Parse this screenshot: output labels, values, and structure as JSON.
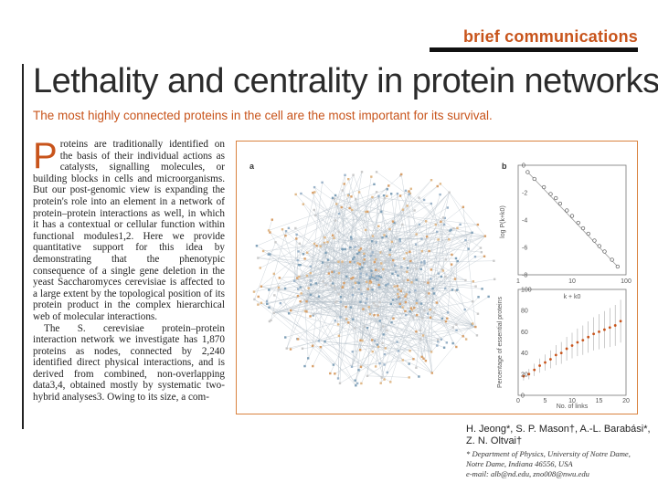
{
  "header": {
    "brand": "brief communications"
  },
  "article": {
    "title": "Lethality and centrality in protein networks",
    "subtitle": "The most highly connected proteins in the cell are the most important for its survival.",
    "dropcap": "P",
    "para1": "roteins are traditionally identified on the basis of their individual actions as catalysts, signalling molecules, or building blocks in cells and microorganisms. But our post-genomic view is expanding the protein's role into an element in a network of protein–protein interactions as well, in which it has a contextual or cellular function within functional modules1,2. Here we provide quantitative support for this idea by demonstrating that the phenotypic consequence of a single gene deletion in the yeast Saccharomyces cerevisiae is affected to a large extent by the topological position of its protein product in the complex hierarchical web of molecular interactions.",
    "para2": "The S. cerevisiae protein–protein interaction network we investigate has 1,870 proteins as nodes, connected by 2,240 identified direct physical interactions, and is derived from combined, non-overlapping data3,4, obtained mostly by systematic two-hybrid analyses3. Owing to its size, a com-"
  },
  "figure": {
    "panel_a": "a",
    "panel_b": "b",
    "b_ylabel_top": "log P(k+k0)",
    "b_xlabel_top": "k + k0",
    "b_ylabel_bottom": "Percentage of essential proteins",
    "b_xlabel_bottom": "No. of links"
  },
  "chart_data": [
    {
      "type": "scatter",
      "xlabel": "k + k0",
      "ylabel": "log P(k+k0)",
      "x_scale": "log",
      "xlim": [
        1,
        100
      ],
      "ylim": [
        -8,
        0
      ],
      "x_ticks": [
        "1",
        "10",
        "100"
      ],
      "y_ticks": [
        "0",
        "-2",
        "-4",
        "-6",
        "-8"
      ],
      "x": [
        1.5,
        2,
        3,
        4,
        5,
        6,
        8,
        10,
        13,
        16,
        20,
        26,
        32,
        40,
        55,
        70
      ],
      "y": [
        -0.5,
        -1.0,
        -1.6,
        -2.1,
        -2.4,
        -2.8,
        -3.3,
        -3.7,
        -4.2,
        -4.6,
        -5.0,
        -5.5,
        -5.9,
        -6.3,
        -6.9,
        -7.4
      ]
    },
    {
      "type": "line",
      "xlabel": "No. of links",
      "ylabel": "Percentage of essential proteins",
      "xlim": [
        0,
        20
      ],
      "ylim": [
        0,
        100
      ],
      "x_ticks": [
        "0",
        "5",
        "10",
        "15",
        "20"
      ],
      "y_ticks": [
        "0",
        "20",
        "40",
        "60",
        "80",
        "100"
      ],
      "x": [
        1,
        2,
        3,
        4,
        5,
        6,
        7,
        8,
        9,
        10,
        11,
        12,
        13,
        14,
        15,
        16,
        17,
        18,
        19
      ],
      "y": [
        18,
        20,
        24,
        28,
        31,
        34,
        38,
        40,
        44,
        47,
        50,
        52,
        55,
        58,
        60,
        62,
        64,
        66,
        70
      ]
    }
  ],
  "authors": {
    "names": "H. Jeong*, S. P. Mason†, A.-L. Barabási*, Z. N. Oltvai†",
    "affil1": "* Department of Physics, University of Notre Dame,",
    "affil2": "Notre Dame, Indiana 46556, USA",
    "email": "e-mail: alb@nd.edu, zno008@nwu.edu"
  }
}
